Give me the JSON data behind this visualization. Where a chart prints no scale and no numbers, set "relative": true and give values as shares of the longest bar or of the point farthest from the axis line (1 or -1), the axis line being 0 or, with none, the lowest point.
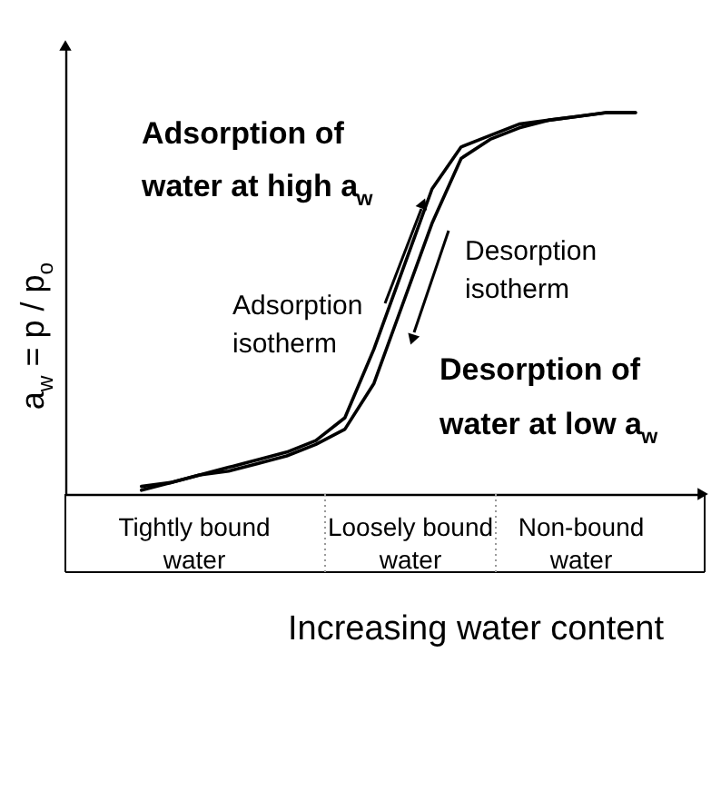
{
  "chart_data": {
    "type": "line",
    "relative": true,
    "categories": [
      null,
      null,
      null,
      null,
      null,
      null,
      null,
      null,
      null,
      null,
      null,
      null,
      null,
      null,
      null,
      null,
      null,
      null
    ],
    "series": [
      {
        "name": "Adsorption\nisotherm",
        "color": "#000000",
        "values": [
          0.02,
          0.03,
          0.05,
          0.07,
          0.09,
          0.11,
          0.14,
          0.2,
          0.38,
          0.59,
          0.8,
          0.91,
          0.94,
          0.97,
          0.98,
          0.99,
          1.0,
          1.0
        ]
      },
      {
        "name": "Desorption\nisotherm",
        "color": "#000000",
        "values": [
          0.01,
          0.03,
          0.05,
          0.06,
          0.08,
          0.1,
          0.13,
          0.17,
          0.29,
          0.5,
          0.71,
          0.88,
          0.93,
          0.96,
          0.98,
          0.99,
          1.0,
          1.0
        ]
      }
    ],
    "xlabel": "Increasing water content",
    "ylabel": "a$_{w}$ = p / p$_{o}$",
    "annotations": [
      "Adsorption of\nwater at high a$_{w}$",
      "Desorption of\nwater at low a$_{w}$",
      "Tightly bound\nwater",
      "Loosely bound\nwater",
      "Non-bound\nwater"
    ],
    "grid": false,
    "tick_labels": false,
    "marker": "none",
    "line_style": "solid"
  }
}
